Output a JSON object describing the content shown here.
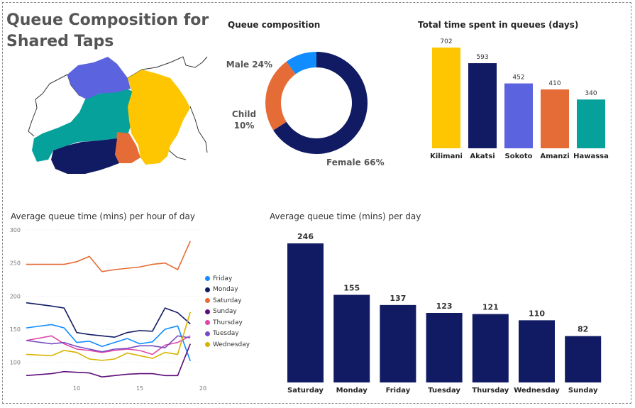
{
  "page": {
    "title": "Queue Composition for Shared Taps"
  },
  "colors": {
    "navy": "#111b63",
    "orange": "#e66c37",
    "blue": "#118dff",
    "yellow": "#fec600",
    "indigo": "#5b63df",
    "teal": "#06a19a",
    "gray": "#9a9a9a"
  },
  "map": {
    "regions": [
      "Kilimani",
      "Akatsi",
      "Sokoto",
      "Amanzi",
      "Hawassa"
    ]
  },
  "chart_data": [
    {
      "id": "queue-composition",
      "type": "pie",
      "title": "Queue composition",
      "slices": [
        {
          "label": "Female",
          "pct_label": "66%",
          "value": 66,
          "color": "#111b63"
        },
        {
          "label": "Male",
          "pct_label": "24%",
          "value": 24,
          "color": "#e66c37"
        },
        {
          "label": "Child",
          "pct_label": "10%",
          "value": 10,
          "color": "#118dff"
        }
      ]
    },
    {
      "id": "total-time",
      "type": "bar",
      "title": "Total time spent in queues (days)",
      "categories": [
        "Kilimani",
        "Akatsi",
        "Sokoto",
        "Amanzi",
        "Hawassa"
      ],
      "values": [
        702,
        593,
        452,
        410,
        340
      ],
      "colors": [
        "#fec600",
        "#111b63",
        "#5b63df",
        "#e66c37",
        "#06a19a"
      ],
      "ylim": [
        0,
        750
      ]
    },
    {
      "id": "hour-of-day",
      "type": "line",
      "title": "Average queue time (mins) per hour of day",
      "xlim": [
        6,
        20
      ],
      "ylim": [
        75,
        300
      ],
      "xticks": [
        10,
        15,
        20
      ],
      "yticks": [
        100,
        150,
        200,
        250,
        300
      ],
      "x": [
        6,
        8,
        9,
        10,
        11,
        12,
        13,
        14,
        15,
        16,
        17,
        18,
        19
      ],
      "series": [
        {
          "name": "Friday",
          "color": "#118dff",
          "values": [
            152,
            157,
            152,
            130,
            132,
            124,
            130,
            136,
            128,
            131,
            150,
            155,
            102
          ]
        },
        {
          "name": "Monday",
          "color": "#111b63",
          "values": [
            190,
            185,
            182,
            145,
            142,
            140,
            138,
            145,
            148,
            147,
            182,
            175,
            158
          ]
        },
        {
          "name": "Saturday",
          "color": "#e66c37",
          "values": [
            248,
            248,
            248,
            252,
            260,
            237,
            240,
            242,
            244,
            248,
            250,
            240,
            283
          ]
        },
        {
          "name": "Sunday",
          "color": "#5c0d78",
          "values": [
            80,
            83,
            86,
            85,
            84,
            78,
            80,
            82,
            83,
            83,
            80,
            80,
            128
          ]
        },
        {
          "name": "Thursday",
          "color": "#e044a7",
          "values": [
            133,
            140,
            128,
            120,
            118,
            115,
            118,
            120,
            118,
            112,
            126,
            130,
            140
          ]
        },
        {
          "name": "Tuesday",
          "color": "#744ec2",
          "values": [
            133,
            128,
            130,
            124,
            120,
            116,
            120,
            121,
            125,
            125,
            122,
            140,
            137
          ]
        },
        {
          "name": "Wednesday",
          "color": "#d9b300",
          "values": [
            112,
            110,
            118,
            115,
            105,
            103,
            105,
            114,
            110,
            106,
            115,
            112,
            176
          ]
        }
      ]
    },
    {
      "id": "per-day",
      "type": "bar",
      "title": "Average queue time (mins) per day",
      "categories": [
        "Saturday",
        "Monday",
        "Friday",
        "Tuesday",
        "Thursday",
        "Wednesday",
        "Sunday"
      ],
      "values": [
        246,
        155,
        137,
        123,
        121,
        110,
        82
      ],
      "color": "#111b63",
      "ylim": [
        0,
        246
      ]
    }
  ]
}
